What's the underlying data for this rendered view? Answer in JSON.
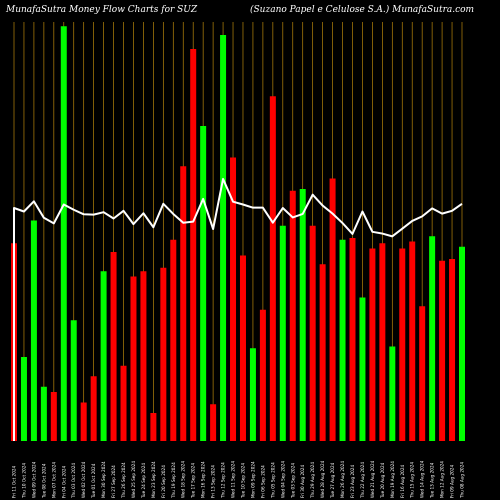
{
  "header": {
    "left_title": "MunafaSutra  Money Flow  Charts for SUZ",
    "right_title": "(Suzano  Papel e   Celulose   S.A.) MunafaSutra.com"
  },
  "colors": {
    "background": "#000000",
    "positive": "#00ff00",
    "negative": "#ff0000",
    "grid": "#b8860b",
    "line": "#ffffff"
  },
  "chart_data": {
    "type": "bar",
    "grid": "vertical",
    "categories": [
      "Fri 11 Oct 2024",
      "Thu 10 Oct 2024",
      "Wed 09 Oct 2024",
      "Tue 08 Oct 2024",
      "Mon 07 Oct 2024",
      "Fri 04 Oct 2024",
      "Thu 03 Oct 2024",
      "Wed 02 Oct 2024",
      "Tue 01 Oct 2024",
      "Mon 30 Sep 2024",
      "Fri 27 Sep 2024",
      "Thu 26 Sep 2024",
      "Wed 25 Sep 2024",
      "Tue 24 Sep 2024",
      "Mon 23 Sep 2024",
      "Fri 20 Sep 2024",
      "Thu 19 Sep 2024",
      "Wed 18 Sep 2024",
      "Tue 17 Sep 2024",
      "Mon 16 Sep 2024",
      "Fri 13 Sep 2024",
      "Thu 12 Sep 2024",
      "Wed 11 Sep 2024",
      "Tue 10 Sep 2024",
      "Mon 09 Sep 2024",
      "Fri 06 Sep 2024",
      "Thu 05 Sep 2024",
      "Wed 04 Sep 2024",
      "Tue 03 Sep 2024",
      "Fri 30 Aug 2024",
      "Thu 29 Aug 2024",
      "Wed 28 Aug 2024",
      "Tue 27 Aug 2024",
      "Mon 26 Aug 2024",
      "Fri 23 Aug 2024",
      "Thu 22 Aug 2024",
      "Wed 21 Aug 2024",
      "Tue 20 Aug 2024",
      "Mon 19 Aug 2024",
      "Fri 16 Aug 2024",
      "Thu 15 Aug 2024",
      "Wed 14 Aug 2024",
      "Tue 13 Aug 2024",
      "Mon 12 Aug 2024",
      "Fri 09 Aug 2024",
      "Thu 08 Aug 2024"
    ],
    "tick_labels": [
      "Fri 11 Oct 2024",
      "Thu 10 Oct 2024",
      "Wed 09 Oct 2024",
      "Tue 08 Oct 2024",
      "Mon 07 Oct 2024",
      "Fri 04 Oct 2024",
      "Thu 03 Oct 2024",
      "Wed 02 Oct 2024",
      "Tue 01 Oct 2024",
      "Mon 30 Sep 2024",
      "Fri 27 Sep 2024",
      "Thu 26 Sep 2024",
      "Wed 25 Sep 2024",
      "Tue 24 Sep 2024",
      "Mon 23 Sep 2024",
      "Fri 20 Sep 2024",
      "Thu 19 Sep 2024",
      "Wed 18 Sep 2024",
      "Tue 17 Sep 2024",
      "Mon 16 Sep 2024",
      "Fri 13 Sep 2024",
      "Thu 12 Sep 2024",
      "Wed 11 Sep 2024",
      "Tue 10 Sep 2024",
      "Mon 09 Sep 2024",
      "Fri 06 Sep 2024",
      "Thu 05 Sep 2024",
      "Wed 04 Sep 2024",
      "Tue 03 Sep 2024",
      "Fri 30 Aug 2024",
      "Thu 29 Aug 2024",
      "Wed 28 Aug 2024",
      "Tue 27 Aug 2024",
      "Mon 26 Aug 2024",
      "Fri 23 Aug 2024",
      "Thu 22 Aug 2024",
      "Wed 21 Aug 2024",
      "Tue 20 Aug 2024",
      "Mon 19 Aug 2024",
      "Fri 16 Aug 2024",
      "Thu 15 Aug 2024",
      "Wed 14 Aug 2024",
      "Tue 13 Aug 2024",
      "Mon 12 Aug 2024",
      "Fri 09 Aug 2024",
      "Thu 08 Aug 2024"
    ],
    "values": [
      113,
      48,
      126,
      31,
      28,
      237,
      69,
      22,
      37,
      97,
      108,
      43,
      94,
      97,
      16,
      99,
      115,
      157,
      224,
      180,
      21,
      232,
      162,
      106,
      53,
      75,
      197,
      123,
      143,
      144,
      123,
      101,
      150,
      115,
      116,
      82,
      110,
      113,
      54,
      110,
      114,
      77,
      117,
      103,
      104,
      111
    ],
    "colors": [
      "red",
      "green",
      "green",
      "green",
      "red",
      "green",
      "green",
      "red",
      "red",
      "green",
      "red",
      "red",
      "red",
      "red",
      "red",
      "red",
      "red",
      "red",
      "red",
      "green",
      "red",
      "green",
      "red",
      "red",
      "green",
      "red",
      "red",
      "green",
      "red",
      "green",
      "red",
      "red",
      "red",
      "green",
      "red",
      "green",
      "red",
      "red",
      "green",
      "red",
      "red",
      "red",
      "green",
      "red",
      "red",
      "green"
    ],
    "line_values": [
      120,
      110,
      139,
      92,
      76,
      130,
      115,
      102,
      101,
      108,
      90,
      112,
      74,
      105,
      65,
      132,
      103,
      78,
      81,
      146,
      60,
      203,
      138,
      130,
      121,
      121,
      78,
      120,
      93,
      103,
      158,
      127,
      104,
      77,
      46,
      110,
      52,
      47,
      39,
      61,
      83,
      96,
      119,
      104,
      112,
      132
    ]
  }
}
